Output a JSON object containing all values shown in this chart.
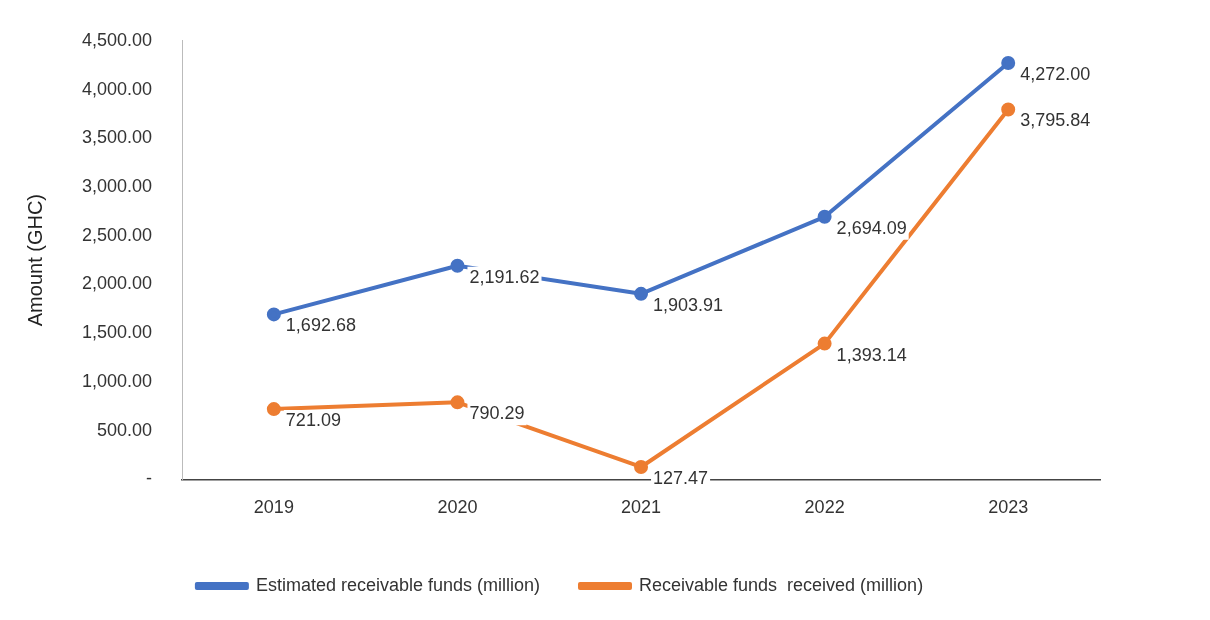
{
  "chart_data": {
    "type": "line",
    "ylabel": "Amount (GHC)",
    "categories": [
      "2019",
      "2020",
      "2021",
      "2022",
      "2023"
    ],
    "series": [
      {
        "name": "Estimated receivable funds (million)",
        "color": "#4472c4",
        "values": [
          1692.68,
          2191.62,
          1903.91,
          2694.09,
          4272.0
        ],
        "value_labels": [
          "1,692.68",
          "2,191.62",
          "1,903.91",
          "2,694.09",
          "4,272.00"
        ]
      },
      {
        "name": "Receivable funds  received (million)",
        "color": "#ed7d31",
        "values": [
          721.09,
          790.29,
          127.47,
          1393.14,
          3795.84
        ],
        "value_labels": [
          "721.09",
          "790.29",
          "127.47",
          "1,393.14",
          "3,795.84"
        ]
      }
    ],
    "ylim": [
      0,
      4500
    ],
    "yticks": [
      {
        "value": 0,
        "label": "-"
      },
      {
        "value": 500,
        "label": "500.00"
      },
      {
        "value": 1000,
        "label": "1,000.00"
      },
      {
        "value": 1500,
        "label": "1,500.00"
      },
      {
        "value": 2000,
        "label": "2,000.00"
      },
      {
        "value": 2500,
        "label": "2,500.00"
      },
      {
        "value": 3000,
        "label": "3,000.00"
      },
      {
        "value": 3500,
        "label": "3,500.00"
      },
      {
        "value": 4000,
        "label": "4,000.00"
      },
      {
        "value": 4500,
        "label": "4,500.00"
      }
    ],
    "grid": false,
    "legend": "bottom",
    "marker": "circle",
    "line_style": "solid"
  }
}
